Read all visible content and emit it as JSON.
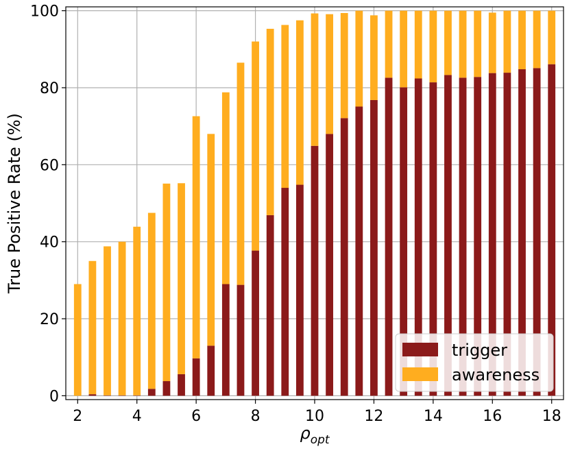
{
  "chart_data": {
    "type": "bar",
    "stacked": true,
    "xlabel_base": "ρ",
    "xlabel_sub": "opt",
    "ylabel": "True Positive Rate (%)",
    "xlim": [
      1.6,
      18.4
    ],
    "ylim": [
      -1,
      101
    ],
    "xticks": [
      2,
      4,
      6,
      8,
      10,
      12,
      14,
      16,
      18
    ],
    "yticks": [
      0,
      20,
      40,
      60,
      80,
      100
    ],
    "grid": true,
    "legend_position": "lower-right",
    "x": [
      2,
      2.5,
      3,
      3.5,
      4,
      4.5,
      5,
      5.5,
      6,
      6.5,
      7,
      7.5,
      8,
      8.5,
      9,
      9.5,
      10,
      10.5,
      11,
      11.5,
      12,
      12.5,
      13,
      13.5,
      14,
      14.5,
      15,
      15.5,
      16,
      16.5,
      17,
      17.5,
      18
    ],
    "series": [
      {
        "name": "trigger",
        "color": "#8b1a1a",
        "values": [
          0,
          0.4,
          0.1,
          0.1,
          0.1,
          1.8,
          3.8,
          5.6,
          9.7,
          13,
          29,
          28.8,
          37.7,
          46.9,
          54,
          54.8,
          64.9,
          68,
          72.1,
          75.1,
          76.8,
          82.6,
          80.1,
          82.4,
          81.4,
          83.3,
          82.6,
          82.8,
          83.8,
          83.9,
          84.8,
          85.1,
          86.1
        ]
      },
      {
        "name": "awareness",
        "color": "#ffad1f",
        "values": [
          29,
          34.6,
          38.7,
          39.9,
          43.8,
          45.7,
          51.3,
          49.6,
          62.9,
          55,
          49.8,
          57.7,
          54.3,
          48.4,
          42.3,
          42.7,
          34.4,
          31.1,
          27.3,
          24.9,
          22,
          17.4,
          19.9,
          17.6,
          18.6,
          16.7,
          17.4,
          17.2,
          15.7,
          16.1,
          15.2,
          14.9,
          13.9
        ]
      }
    ]
  }
}
